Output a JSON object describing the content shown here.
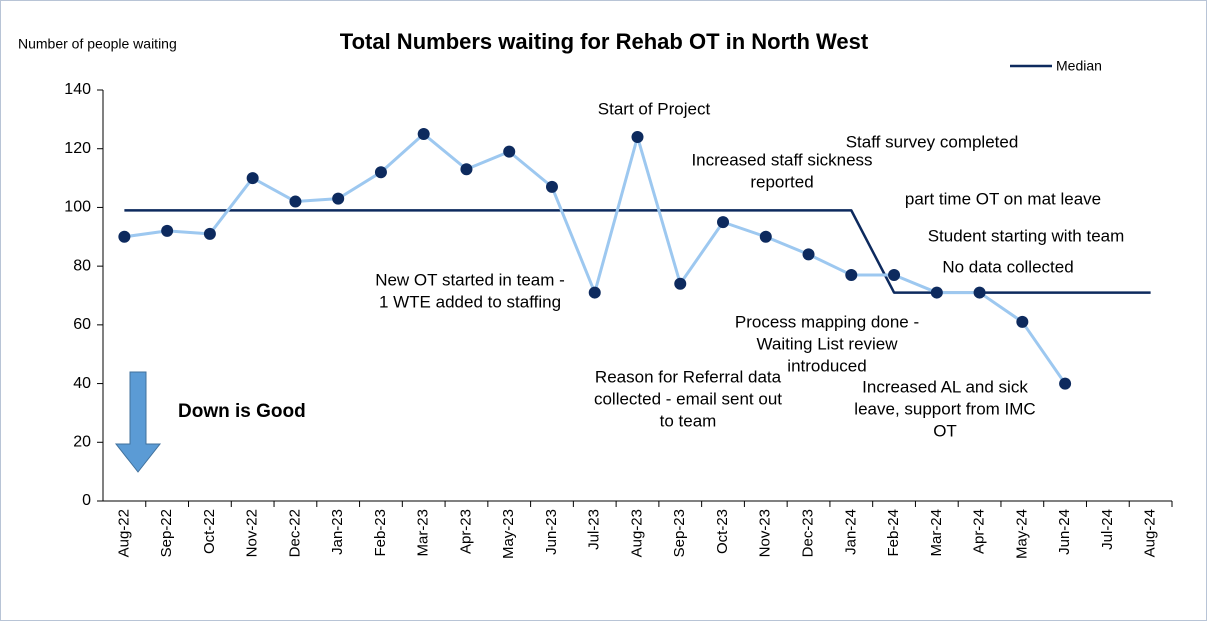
{
  "chart_data": {
    "type": "line",
    "title": "Total Numbers waiting for Rehab OT in North West",
    "y_axis_label": "Number of people waiting",
    "categories": [
      "Aug-22",
      "Sep-22",
      "Oct-22",
      "Nov-22",
      "Dec-22",
      "Jan-23",
      "Feb-23",
      "Mar-23",
      "Apr-23",
      "May-23",
      "Jun-23",
      "Jul-23",
      "Aug-23",
      "Sep-23",
      "Oct-23",
      "Nov-23",
      "Dec-23",
      "Jan-24",
      "Feb-24",
      "Mar-24",
      "Apr-24",
      "May-24",
      "Jun-24",
      "Jul-24",
      "Aug-24"
    ],
    "series": [
      {
        "color": "#9dc8f0",
        "marker_color": "#0d2a5e",
        "values": [
          90,
          92,
          91,
          110,
          102,
          103,
          112,
          125,
          113,
          119,
          107,
          71,
          124,
          74,
          95,
          90,
          84,
          77,
          77,
          71,
          71,
          61,
          40,
          null,
          null
        ]
      },
      {
        "name": "Median",
        "color": "#0d2a5e",
        "values": [
          99,
          99,
          99,
          99,
          99,
          99,
          99,
          99,
          99,
          99,
          99,
          99,
          99,
          99,
          99,
          99,
          99,
          99,
          71,
          71,
          71,
          71,
          71,
          71,
          71
        ]
      }
    ],
    "ylim": [
      0,
      140
    ],
    "yticks": [
      0,
      20,
      40,
      60,
      80,
      100,
      120,
      140
    ],
    "legend": "top-right",
    "annotations": [
      [
        "Start of Project"
      ],
      [
        "Increased staff sickness",
        "reported"
      ],
      [
        "Staff survey completed"
      ],
      [
        "part time OT on mat leave"
      ],
      [
        "Student starting with team"
      ],
      [
        "No data collected"
      ],
      [
        "New OT started in team -",
        "1 WTE added to staffing"
      ],
      [
        "Process mapping done -",
        "Waiting List review",
        "introduced"
      ],
      [
        "Reason for Referral data",
        "collected - email sent out",
        "to team"
      ],
      [
        "Increased AL and sick",
        "leave, support from IMC",
        "OT"
      ]
    ],
    "callout": "Down is Good"
  }
}
